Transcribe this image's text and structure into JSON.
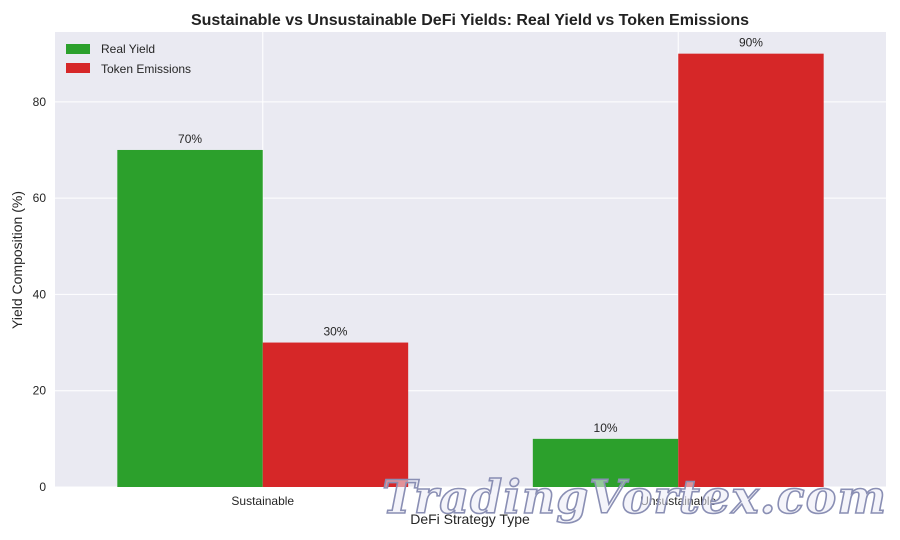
{
  "chart_data": {
    "type": "bar",
    "title": "Sustainable vs Unsustainable DeFi Yields: Real Yield vs Token Emissions",
    "xlabel": "DeFi Strategy Type",
    "ylabel": "Yield Composition (%)",
    "categories": [
      "Sustainable",
      "Unsustainable"
    ],
    "series": [
      {
        "name": "Real Yield",
        "values": [
          70,
          10
        ],
        "labels": [
          "70%",
          "10%"
        ],
        "color": "#2ca02c"
      },
      {
        "name": "Token Emissions",
        "values": [
          30,
          90
        ],
        "labels": [
          "30%",
          "90%"
        ],
        "color": "#d62728"
      }
    ],
    "ylim": [
      0,
      94.5
    ],
    "yticks": [
      0,
      20,
      40,
      60,
      80
    ],
    "grid": true,
    "legend_position": "top-left",
    "background": "#eaeaf2"
  },
  "watermark": "TradingVortex.com"
}
